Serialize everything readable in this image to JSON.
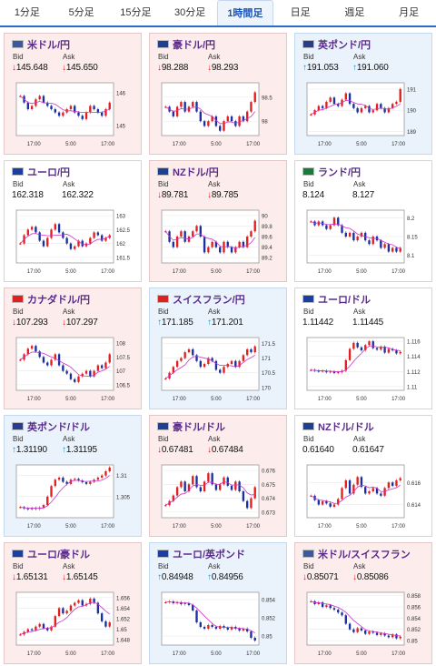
{
  "tabs": [
    {
      "label": "1分足"
    },
    {
      "label": "5分足"
    },
    {
      "label": "15分足"
    },
    {
      "label": "30分足"
    },
    {
      "label": "1時間足",
      "active": true
    },
    {
      "label": "日足"
    },
    {
      "label": "週足"
    },
    {
      "label": "月足"
    }
  ],
  "labels": {
    "bid": "Bid",
    "ask": "Ask"
  },
  "colors": {
    "down_bg": "#fcecec",
    "up_bg": "#eaf3fc",
    "down_arrow": "#e02020",
    "up_arrow": "#1f8fc8",
    "candle_up": "#e02020",
    "candle_down": "#1a2fa0",
    "ma": "#cc33cc"
  },
  "cards": [
    {
      "pair": "米ドル/円",
      "flag": "us-jp-flag",
      "dir": "down",
      "bid": "145.648",
      "ask": "145.650",
      "chart_data": {
        "type": "candlestick",
        "x_ticks": [
          "17:00",
          "5:00",
          "17:00"
        ],
        "y_ticks": [
          "146",
          "145"
        ],
        "yrange": [
          144.7,
          146.3
        ],
        "close": [
          145.9,
          145.7,
          145.5,
          145.6,
          145.8,
          145.9,
          145.7,
          145.6,
          145.5,
          145.4,
          145.3,
          145.4,
          145.5,
          145.6,
          145.4,
          145.3,
          145.2,
          145.4,
          145.6,
          145.5,
          145.4,
          145.3,
          145.5,
          145.7
        ]
      }
    },
    {
      "pair": "豪ドル/円",
      "flag": "au-jp-flag",
      "dir": "down",
      "bid": "98.288",
      "ask": "98.293",
      "chart_data": {
        "type": "candlestick",
        "x_ticks": [
          "17:00",
          "5:00",
          "17:00"
        ],
        "y_ticks": [
          "98.5",
          "98"
        ],
        "yrange": [
          97.7,
          98.8
        ],
        "close": [
          98.3,
          98.2,
          98.1,
          98.3,
          98.4,
          98.2,
          98.3,
          98.4,
          98.2,
          98.0,
          97.9,
          98.0,
          98.1,
          97.9,
          97.8,
          98.0,
          98.1,
          98.0,
          97.9,
          98.1,
          98.0,
          98.2,
          98.4,
          98.6
        ]
      }
    },
    {
      "pair": "英ポンド/円",
      "flag": "uk-jp-flag",
      "dir": "up",
      "bid": "191.053",
      "ask": "191.060",
      "chart_data": {
        "type": "candlestick",
        "x_ticks": [
          "17:00",
          "5:00",
          "17:00"
        ],
        "y_ticks": [
          "191",
          "190",
          "189"
        ],
        "yrange": [
          188.8,
          191.3
        ],
        "close": [
          189.8,
          190.0,
          190.2,
          190.1,
          190.4,
          190.6,
          190.3,
          190.2,
          190.5,
          190.8,
          190.3,
          190.1,
          189.9,
          190.1,
          190.2,
          189.9,
          190.0,
          190.3,
          190.1,
          189.9,
          190.1,
          190.3,
          190.4,
          191.0
        ]
      }
    },
    {
      "pair": "ユーロ/円",
      "flag": "eu-jp-flag",
      "dir": "flat",
      "bid": "162.318",
      "ask": "162.322",
      "chart_data": {
        "type": "candlestick",
        "x_ticks": [
          "17:00",
          "5:00",
          "17:00"
        ],
        "y_ticks": [
          "163",
          "162.5",
          "162",
          "161.5"
        ],
        "yrange": [
          161.3,
          163.2
        ],
        "close": [
          162.0,
          162.3,
          162.5,
          162.6,
          162.4,
          162.1,
          161.9,
          162.2,
          162.5,
          162.7,
          162.4,
          162.2,
          162.0,
          161.8,
          161.9,
          162.1,
          161.9,
          162.0,
          162.2,
          162.4,
          162.3,
          162.1,
          162.2,
          162.3
        ]
      }
    },
    {
      "pair": "NZドル/円",
      "flag": "nz-jp-flag",
      "dir": "down",
      "bid": "89.781",
      "ask": "89.785",
      "chart_data": {
        "type": "candlestick",
        "x_ticks": [
          "17:00",
          "5:00",
          "17:00"
        ],
        "y_ticks": [
          "90",
          "89.8",
          "89.6",
          "89.4",
          "89.2"
        ],
        "yrange": [
          89.1,
          90.1
        ],
        "close": [
          89.7,
          89.5,
          89.4,
          89.6,
          89.7,
          89.5,
          89.6,
          89.7,
          89.8,
          89.6,
          89.3,
          89.4,
          89.5,
          89.4,
          89.3,
          89.5,
          89.4,
          89.3,
          89.4,
          89.5,
          89.4,
          89.6,
          89.7,
          89.9
        ]
      }
    },
    {
      "pair": "ランド/円",
      "flag": "za-jp-flag",
      "dir": "flat",
      "bid": "8.124",
      "ask": "8.127",
      "chart_data": {
        "type": "candlestick",
        "x_ticks": [
          "17:00",
          "5:00",
          "17:00"
        ],
        "y_ticks": [
          "8.2",
          "8.15",
          "8.1"
        ],
        "yrange": [
          8.08,
          8.22
        ],
        "close": [
          8.19,
          8.18,
          8.19,
          8.18,
          8.17,
          8.18,
          8.2,
          8.18,
          8.16,
          8.15,
          8.16,
          8.14,
          8.15,
          8.16,
          8.14,
          8.13,
          8.15,
          8.14,
          8.12,
          8.13,
          8.11,
          8.12,
          8.11,
          8.12
        ]
      }
    },
    {
      "pair": "カナダドル/円",
      "flag": "ca-jp-flag",
      "dir": "down",
      "bid": "107.293",
      "ask": "107.297",
      "chart_data": {
        "type": "candlestick",
        "x_ticks": [
          "17:00",
          "5:00",
          "17:00"
        ],
        "y_ticks": [
          "108",
          "107.5",
          "107",
          "106.5"
        ],
        "yrange": [
          106.3,
          108.2
        ],
        "close": [
          107.4,
          107.6,
          107.8,
          107.9,
          107.7,
          107.5,
          107.3,
          107.2,
          107.4,
          107.6,
          107.2,
          107.0,
          106.9,
          106.7,
          106.6,
          106.8,
          106.9,
          107.0,
          106.8,
          107.0,
          107.2,
          107.1,
          107.3,
          107.6
        ]
      }
    },
    {
      "pair": "スイスフラン/円",
      "flag": "ch-jp-flag",
      "dir": "up",
      "bid": "171.185",
      "ask": "171.201",
      "chart_data": {
        "type": "candlestick",
        "x_ticks": [
          "17:00",
          "5:00",
          "17:00"
        ],
        "y_ticks": [
          "171.5",
          "171",
          "170.5",
          "170"
        ],
        "yrange": [
          169.9,
          171.7
        ],
        "close": [
          170.3,
          170.5,
          170.7,
          170.9,
          171.0,
          171.2,
          171.3,
          171.1,
          170.9,
          170.7,
          170.8,
          171.0,
          170.9,
          170.6,
          170.5,
          170.7,
          170.8,
          170.9,
          170.7,
          170.9,
          171.1,
          171.3,
          171.2,
          171.4
        ]
      }
    },
    {
      "pair": "ユーロ/ドル",
      "flag": "eu-us-flag",
      "dir": "flat",
      "bid": "1.11442",
      "ask": "1.11445",
      "chart_data": {
        "type": "candlestick",
        "x_ticks": [
          "17:00",
          "5:00",
          "17:00"
        ],
        "y_ticks": [
          "1.116",
          "1.114",
          "1.112",
          "1.11"
        ],
        "yrange": [
          1.1095,
          1.1165
        ],
        "close": [
          1.1122,
          1.1121,
          1.112,
          1.1121,
          1.1119,
          1.112,
          1.1118,
          1.1119,
          1.1121,
          1.1135,
          1.115,
          1.1158,
          1.1152,
          1.1148,
          1.1155,
          1.116,
          1.1151,
          1.1149,
          1.1153,
          1.1145,
          1.115,
          1.1148,
          1.1144,
          1.1146
        ]
      }
    },
    {
      "pair": "英ポンド/ドル",
      "flag": "uk-us-flag",
      "dir": "up",
      "bid": "1.31190",
      "ask": "1.31195",
      "chart_data": {
        "type": "candlestick",
        "x_ticks": [
          "17:00",
          "5:00",
          "17:00"
        ],
        "y_ticks": [
          "1.31",
          "1.305"
        ],
        "yrange": [
          1.3,
          1.3125
        ],
        "close": [
          1.3025,
          1.3022,
          1.302,
          1.3023,
          1.3021,
          1.3024,
          1.303,
          1.305,
          1.3075,
          1.309,
          1.3095,
          1.3085,
          1.308,
          1.309,
          1.3092,
          1.3088,
          1.3084,
          1.308,
          1.3085,
          1.309,
          1.3095,
          1.31,
          1.311,
          1.3119
        ]
      }
    },
    {
      "pair": "豪ドル/ドル",
      "flag": "au-us-flag",
      "dir": "down",
      "bid": "0.67481",
      "ask": "0.67484",
      "chart_data": {
        "type": "candlestick",
        "x_ticks": [
          "17:00",
          "5:00",
          "17:00"
        ],
        "y_ticks": [
          "0.676",
          "0.675",
          "0.674",
          "0.673"
        ],
        "yrange": [
          0.6726,
          0.6764
        ],
        "close": [
          0.6735,
          0.6738,
          0.6742,
          0.6748,
          0.6752,
          0.6745,
          0.675,
          0.6756,
          0.6748,
          0.6745,
          0.6752,
          0.6758,
          0.675,
          0.6746,
          0.675,
          0.6755,
          0.6749,
          0.6746,
          0.6752,
          0.6745,
          0.6738,
          0.6733,
          0.674,
          0.6748
        ]
      }
    },
    {
      "pair": "NZドル/ドル",
      "flag": "nz-us-flag",
      "dir": "flat",
      "bid": "0.61640",
      "ask": "0.61647",
      "chart_data": {
        "type": "candlestick",
        "x_ticks": [
          "17:00",
          "5:00",
          "17:00"
        ],
        "y_ticks": [
          "0.616",
          "0.614"
        ],
        "yrange": [
          0.6128,
          0.6176
        ],
        "close": [
          0.6148,
          0.6144,
          0.614,
          0.6143,
          0.6141,
          0.6138,
          0.614,
          0.6145,
          0.6155,
          0.6162,
          0.615,
          0.6158,
          0.6165,
          0.6156,
          0.615,
          0.6152,
          0.6155,
          0.615,
          0.6148,
          0.6155,
          0.616,
          0.6157,
          0.6162,
          0.6164
        ]
      }
    },
    {
      "pair": "ユーロ/豪ドル",
      "flag": "eu-au-flag",
      "dir": "down",
      "bid": "1.65131",
      "ask": "1.65145",
      "chart_data": {
        "type": "candlestick",
        "x_ticks": [
          "17:00",
          "5:00",
          "17:00"
        ],
        "y_ticks": [
          "1.656",
          "1.654",
          "1.652",
          "1.65",
          "1.648"
        ],
        "yrange": [
          1.647,
          1.657
        ],
        "close": [
          1.649,
          1.6495,
          1.65,
          1.6498,
          1.6505,
          1.651,
          1.6502,
          1.6498,
          1.6505,
          1.6525,
          1.654,
          1.653,
          1.6535,
          1.6545,
          1.655,
          1.6555,
          1.6545,
          1.6548,
          1.6558,
          1.655,
          1.653,
          1.6515,
          1.6505,
          1.6513
        ]
      }
    },
    {
      "pair": "ユーロ/英ポンド",
      "flag": "eu-uk-flag",
      "dir": "up",
      "bid": "0.84948",
      "ask": "0.84956",
      "chart_data": {
        "type": "candlestick",
        "x_ticks": [
          "17:00",
          "5:00",
          "17:00"
        ],
        "y_ticks": [
          "0.854",
          "0.852",
          "0.85"
        ],
        "yrange": [
          0.849,
          0.8548
        ],
        "close": [
          0.8537,
          0.8538,
          0.8536,
          0.8537,
          0.8535,
          0.8536,
          0.8534,
          0.8528,
          0.8515,
          0.851,
          0.8508,
          0.8512,
          0.851,
          0.8508,
          0.8511,
          0.8509,
          0.8507,
          0.851,
          0.8508,
          0.8506,
          0.8508,
          0.8505,
          0.8498,
          0.8495
        ]
      }
    },
    {
      "pair": "米ドル/スイスフラン",
      "flag": "us-ch-flag",
      "dir": "down",
      "bid": "0.85071",
      "ask": "0.85086",
      "chart_data": {
        "type": "candlestick",
        "x_ticks": [
          "17:00",
          "5:00",
          "17:00"
        ],
        "y_ticks": [
          "0.858",
          "0.856",
          "0.854",
          "0.852",
          "0.85"
        ],
        "yrange": [
          0.8492,
          0.8586
        ],
        "close": [
          0.857,
          0.8565,
          0.8568,
          0.856,
          0.8563,
          0.8558,
          0.8555,
          0.855,
          0.8545,
          0.853,
          0.852,
          0.8515,
          0.8522,
          0.8518,
          0.8512,
          0.8516,
          0.8514,
          0.851,
          0.8513,
          0.8509,
          0.8506,
          0.8511,
          0.8504,
          0.8507
        ]
      }
    }
  ]
}
